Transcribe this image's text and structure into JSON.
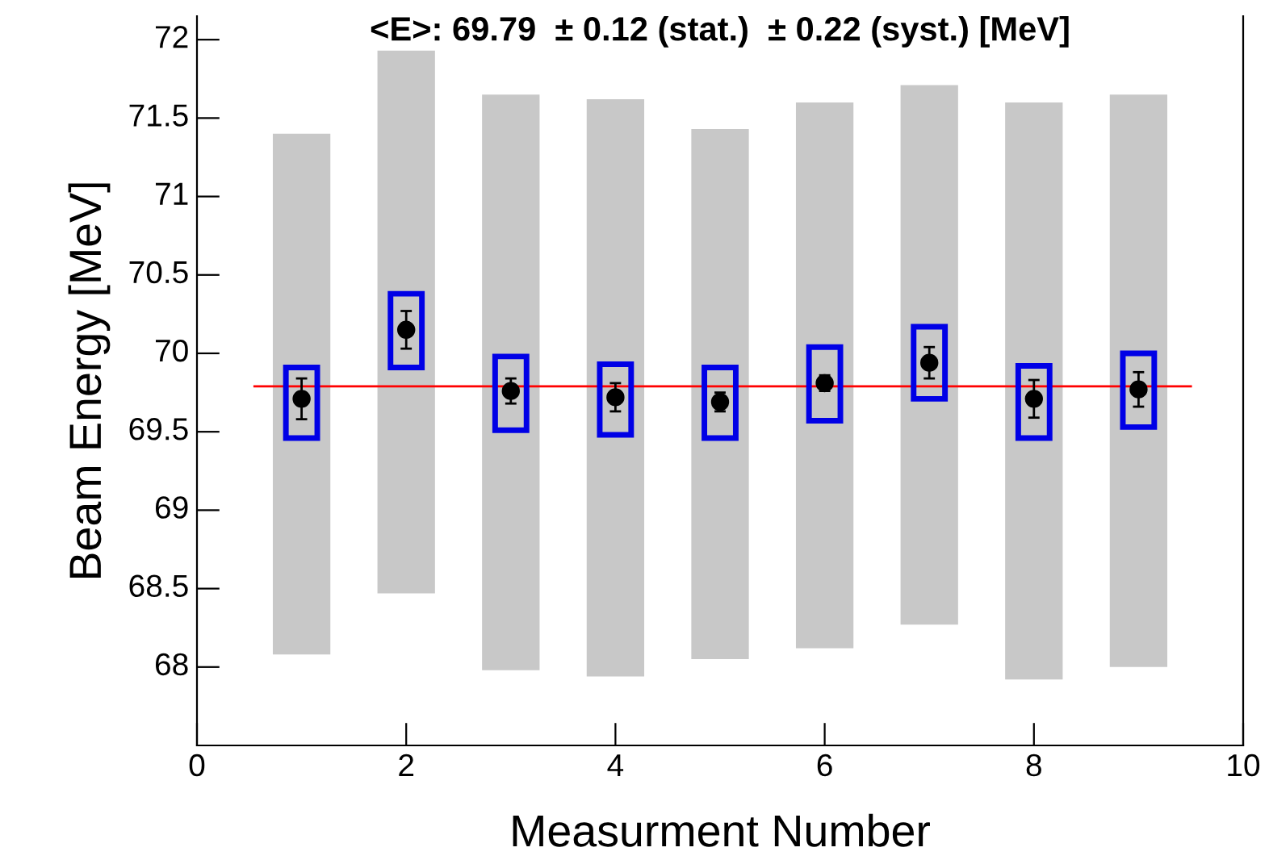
{
  "chart_data": {
    "type": "scatter",
    "title": "<E>: 69.79  ± 0.12 (stat.)  ± 0.22 (syst.) [MeV]",
    "xlabel": "Measurment Number",
    "ylabel": "Beam Energy [MeV]",
    "x": [
      1,
      2,
      3,
      4,
      5,
      6,
      7,
      8,
      9
    ],
    "series": [
      {
        "type": "bar",
        "color": "#c8c8c8",
        "base": [
          68.08,
          68.47,
          67.98,
          67.94,
          68.05,
          68.12,
          68.27,
          67.92,
          68.0
        ],
        "values": [
          3.32,
          3.46,
          3.67,
          3.68,
          3.38,
          3.48,
          3.44,
          3.68,
          3.65
        ]
      },
      {
        "type": "bar",
        "color": "#0000e6",
        "base": [
          69.46,
          69.91,
          69.51,
          69.48,
          69.46,
          69.57,
          69.71,
          69.46,
          69.53
        ],
        "values": [
          0.45,
          0.47,
          0.47,
          0.45,
          0.45,
          0.47,
          0.46,
          0.46,
          0.47
        ]
      },
      {
        "color": "#000000",
        "values": [
          69.71,
          70.15,
          69.76,
          69.72,
          69.69,
          69.81,
          69.94,
          69.71,
          69.77
        ],
        "errors": [
          0.13,
          0.12,
          0.08,
          0.09,
          0.06,
          0.05,
          0.1,
          0.12,
          0.11
        ]
      }
    ],
    "ref_lines": [
      {
        "axis": "y",
        "value": 69.79,
        "color": "#ff0000"
      }
    ],
    "xlim": [
      0,
      10
    ],
    "ylim": [
      67.5,
      72.15
    ],
    "xticks": [
      0,
      2,
      4,
      6,
      8,
      10
    ],
    "yticks": [
      68,
      68.5,
      69,
      69.5,
      70,
      70.5,
      71,
      71.5,
      72
    ],
    "marker": "circle",
    "grid": false,
    "legend": false
  }
}
